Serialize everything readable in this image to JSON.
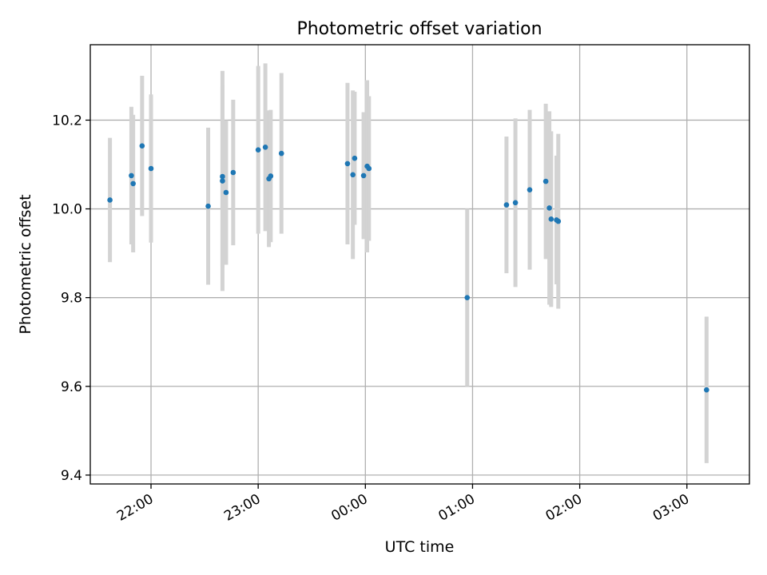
{
  "chart_data": {
    "type": "scatter",
    "title": "Photometric offset variation",
    "xlabel": "UTC time",
    "ylabel": "Photometric offset",
    "x_axis": {
      "kind": "time",
      "ticks": [
        {
          "time": "22:00",
          "label": "22:00"
        },
        {
          "time": "23:00",
          "label": "23:00"
        },
        {
          "time": "00:00",
          "label": "00:00"
        },
        {
          "time": "01:00",
          "label": "01:00"
        },
        {
          "time": "02:00",
          "label": "02:00"
        },
        {
          "time": "03:00",
          "label": "03:00"
        }
      ],
      "range": [
        "21:26",
        "03:35"
      ]
    },
    "y_axis": {
      "ticks": [
        9.4,
        9.6,
        9.8,
        10.0,
        10.2
      ],
      "tick_labels": [
        "9.4",
        "9.6",
        "9.8",
        "10.0",
        "10.2"
      ],
      "range": [
        9.38,
        10.37
      ]
    },
    "grid": true,
    "colors": {
      "marker": "#1f77b4",
      "errorbar": "#d3d3d3",
      "grid": "#b0b0b0"
    },
    "points": [
      {
        "time": "21:37",
        "y": 10.02,
        "err": 0.14
      },
      {
        "time": "21:49",
        "y": 10.075,
        "err": 0.155
      },
      {
        "time": "21:50",
        "y": 10.057,
        "err": 0.155
      },
      {
        "time": "21:55",
        "y": 10.142,
        "err": 0.158
      },
      {
        "time": "22:00",
        "y": 10.091,
        "err": 0.167
      },
      {
        "time": "22:32",
        "y": 10.006,
        "err": 0.177
      },
      {
        "time": "22:40",
        "y": 10.063,
        "err": 0.248
      },
      {
        "time": "22:40",
        "y": 10.073,
        "err": 0.204
      },
      {
        "time": "22:42",
        "y": 10.037,
        "err": 0.163
      },
      {
        "time": "22:46",
        "y": 10.082,
        "err": 0.164
      },
      {
        "time": "23:00",
        "y": 10.133,
        "err": 0.189
      },
      {
        "time": "23:04",
        "y": 10.139,
        "err": 0.189
      },
      {
        "time": "23:06",
        "y": 10.068,
        "err": 0.154
      },
      {
        "time": "23:07",
        "y": 10.074,
        "err": 0.149
      },
      {
        "time": "23:13",
        "y": 10.125,
        "err": 0.181
      },
      {
        "time": "23:50",
        "y": 10.102,
        "err": 0.182
      },
      {
        "time": "23:53",
        "y": 10.077,
        "err": 0.19
      },
      {
        "time": "23:54",
        "y": 10.114,
        "err": 0.15
      },
      {
        "time": "23:59",
        "y": 10.075,
        "err": 0.143
      },
      {
        "time": "00:01",
        "y": 10.096,
        "err": 0.194
      },
      {
        "time": "00:02",
        "y": 10.091,
        "err": 0.163
      },
      {
        "time": "00:57",
        "y": 9.8,
        "err": 0.2
      },
      {
        "time": "01:19",
        "y": 10.009,
        "err": 0.154
      },
      {
        "time": "01:24",
        "y": 10.014,
        "err": 0.19
      },
      {
        "time": "01:32",
        "y": 10.043,
        "err": 0.18
      },
      {
        "time": "01:41",
        "y": 10.062,
        "err": 0.175
      },
      {
        "time": "01:43",
        "y": 10.002,
        "err": 0.218
      },
      {
        "time": "01:44",
        "y": 9.977,
        "err": 0.198
      },
      {
        "time": "01:47",
        "y": 9.975,
        "err": 0.145
      },
      {
        "time": "01:48",
        "y": 9.972,
        "err": 0.197
      },
      {
        "time": "03:11",
        "y": 9.592,
        "err": 0.165
      }
    ]
  }
}
